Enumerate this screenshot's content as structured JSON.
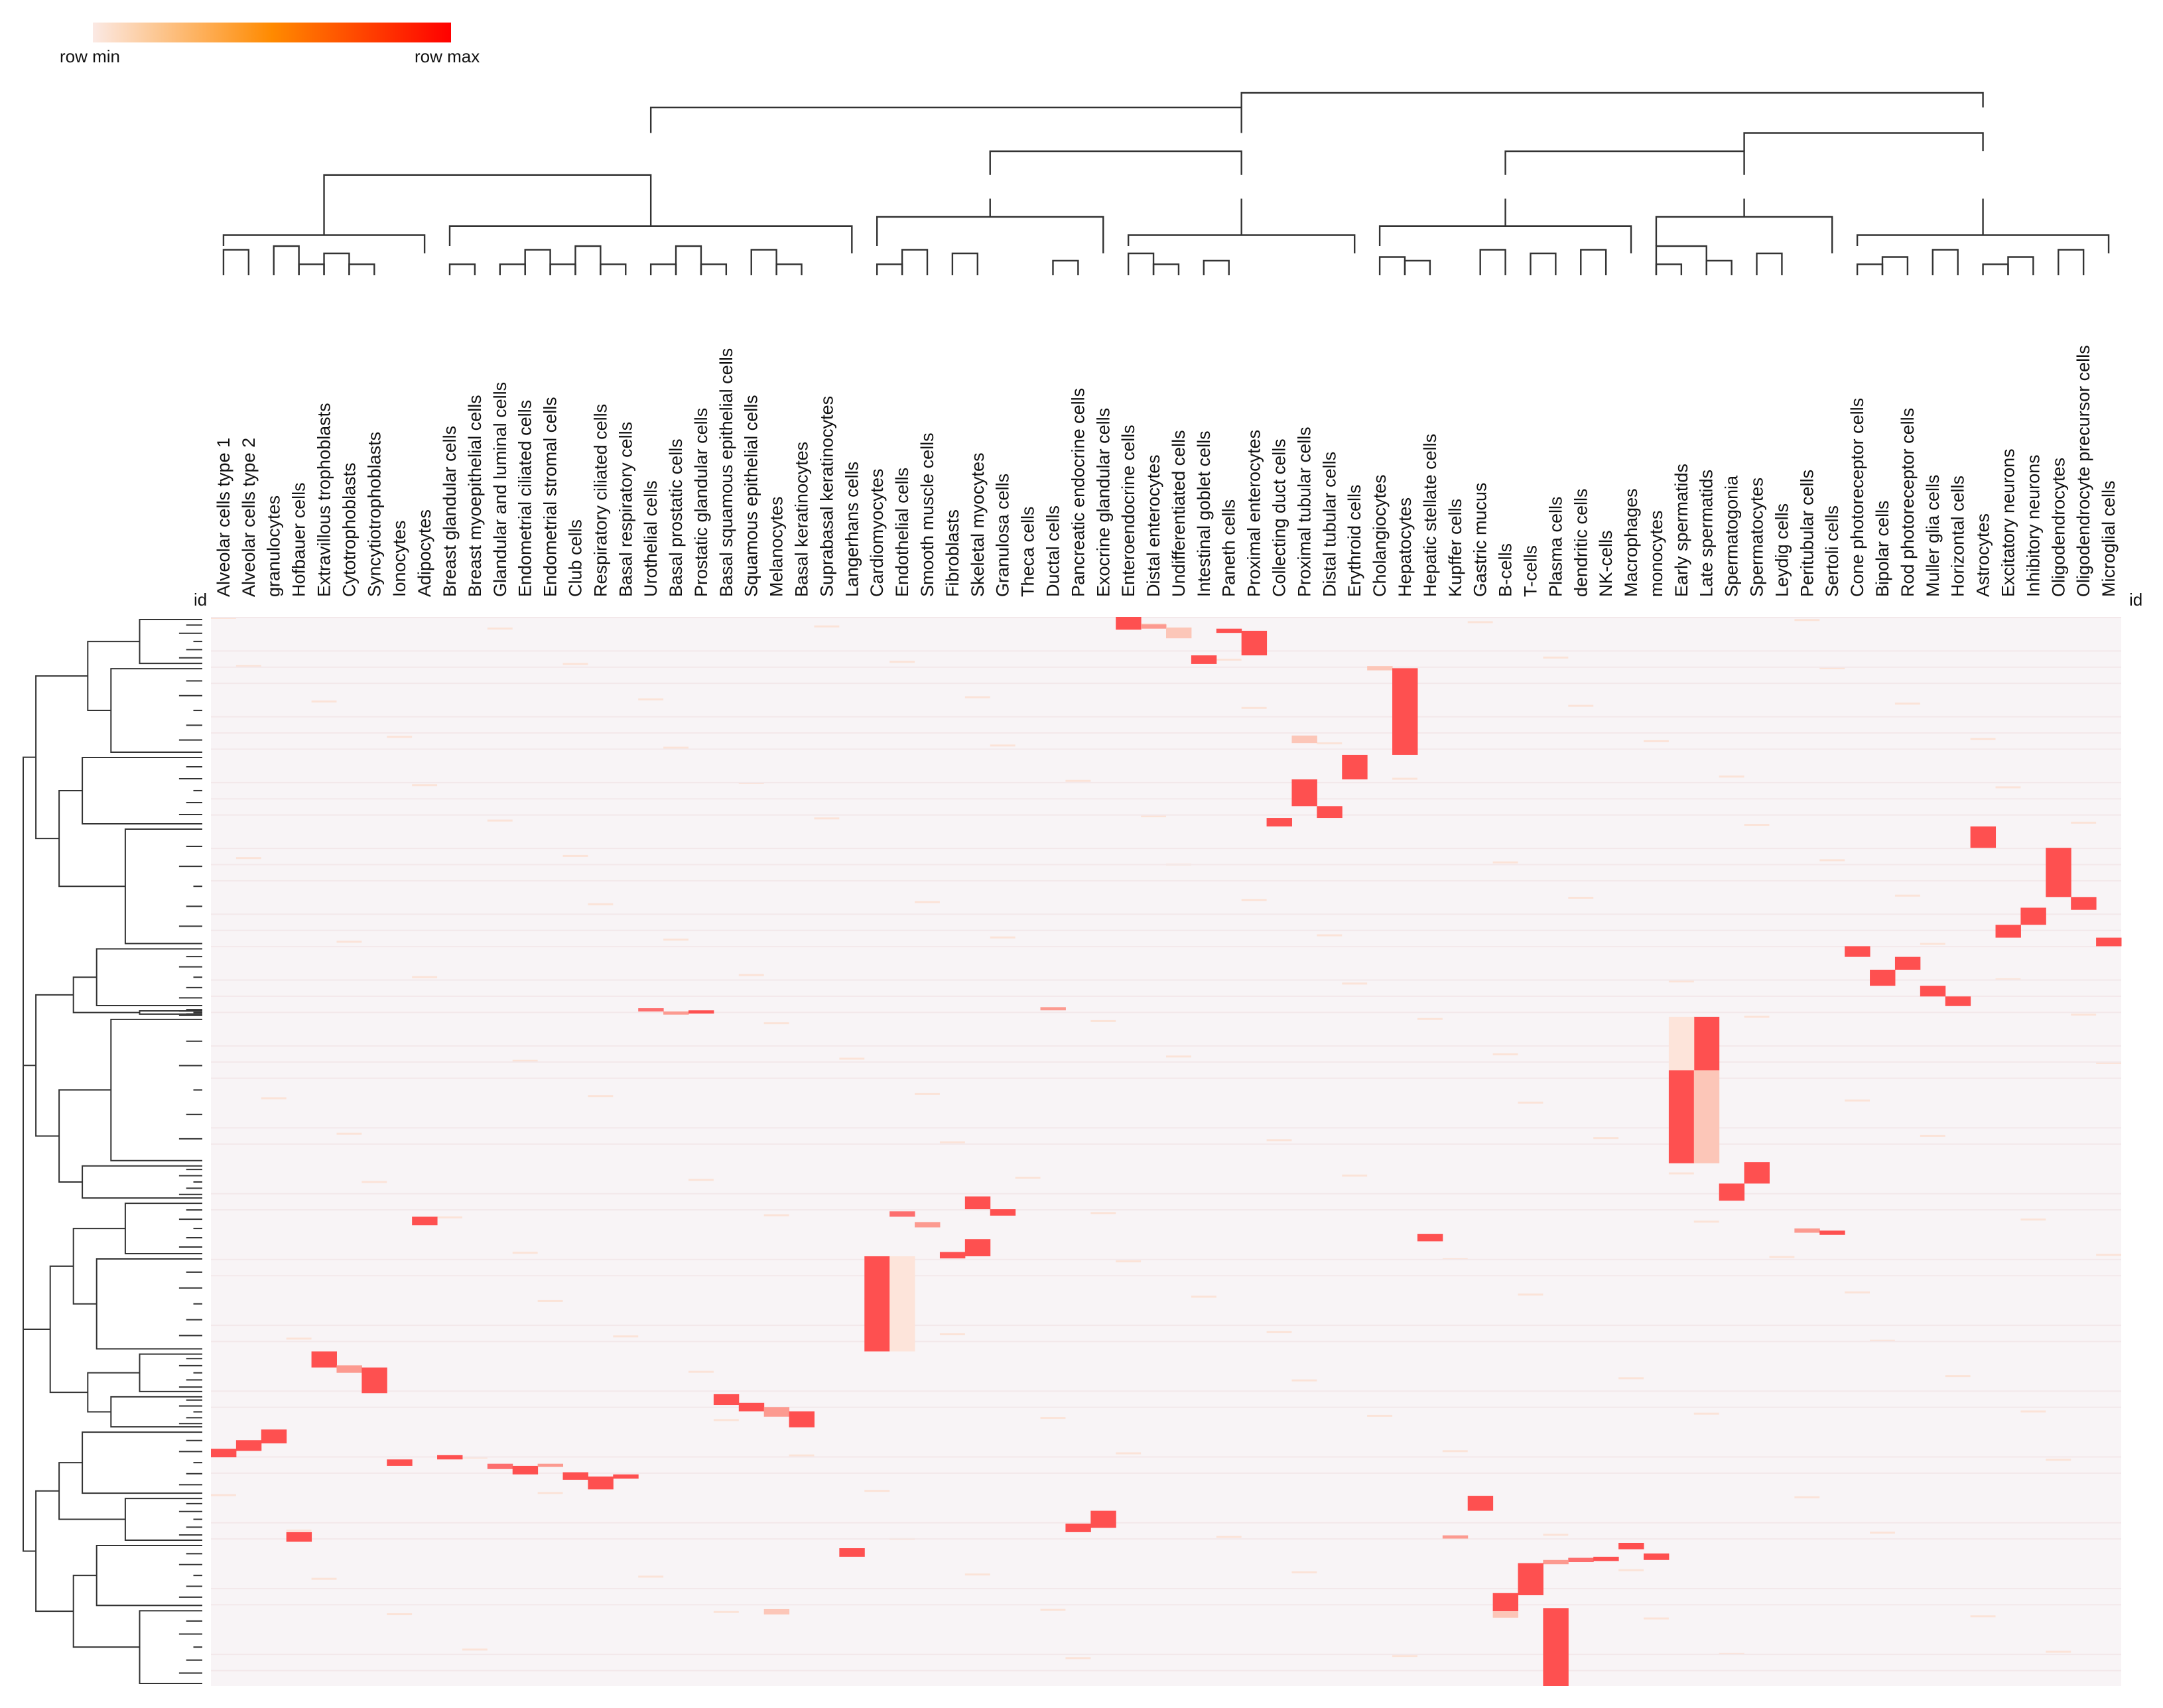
{
  "legend": {
    "min_label": "row min",
    "max_label": "row max",
    "gradient": [
      "#fbe9e4",
      "#ff8a00",
      "#ff0000"
    ]
  },
  "heatmap_bg": "#f8f4f6",
  "chart_data": {
    "type": "heatmap",
    "id_label_left": "id",
    "id_label_right": "id",
    "columns": [
      "Alveolar cells type 1",
      "Alveolar cells type 2",
      "granulocytes",
      "Hofbauer cells",
      "Extravillous trophoblasts",
      "Cytotrophoblasts",
      "Syncytiotrophoblasts",
      "Ionocytes",
      "Adipocytes",
      "Breast glandular cells",
      "Breast myoepithelial cells",
      "Glandular and luminal cells",
      "Endometrial ciliated cells",
      "Endometrial stromal cells",
      "Club cells",
      "Respiratory ciliated cells",
      "Basal respiratory cells",
      "Urothelial cells",
      "Basal prostatic cells",
      "Prostatic glandular cells",
      "Basal squamous epithelial cells",
      "Squamous epithelial cells",
      "Melanocytes",
      "Basal keratinocytes",
      "Suprabasal keratinocytes",
      "Langerhans cells",
      "Cardiomyocytes",
      "Endothelial cells",
      "Smooth muscle cells",
      "Fibroblasts",
      "Skeletal myocytes",
      "Granulosa cells",
      "Theca cells",
      "Ductal cells",
      "Pancreatic endocrine cells",
      "Exocrine glandular cells",
      "Enteroendocrine cells",
      "Distal enterocytes",
      "Undifferentiated cells",
      "Intestinal goblet cells",
      "Paneth cells",
      "Proximal enterocytes",
      "Collecting duct cells",
      "Proximal tubular cells",
      "Distal tubular cells",
      "Erythroid cells",
      "Cholangiocytes",
      "Hepatocytes",
      "Hepatic stellate cells",
      "Kupffer cells",
      "Gastric mucus",
      "B-cells",
      "T-cells",
      "Plasma cells",
      "dendritic cells",
      "NK-cells",
      "Macrophages",
      "monocytes",
      "Early spermatids",
      "Late spermatids",
      "Spermatogonia",
      "Spermatocytes",
      "Leydig cells",
      "Peritubular cells",
      "Sertoli cells",
      "Cone photoreceptor cells",
      "Bipolar cells",
      "Rod photoreceptor cells",
      "Muller glia cells",
      "Horizontal cells",
      "Astrocytes",
      "Excitatory neurons",
      "Inhibitory neurons",
      "Oligodendrocytes",
      "Oligodendrocyte precursor cells",
      "Microglial cells"
    ],
    "value_range": [
      0,
      1
    ],
    "row_range": [
      0,
      1
    ],
    "blocks": [
      {
        "col": 36,
        "r0": 0.0,
        "r1": 0.012,
        "v": 1
      },
      {
        "col": 37,
        "r0": 0.007,
        "r1": 0.011,
        "v": 0.5
      },
      {
        "col": 38,
        "r0": 0.01,
        "r1": 0.02,
        "v": 0.4
      },
      {
        "col": 40,
        "r0": 0.011,
        "r1": 0.015,
        "v": 0.9
      },
      {
        "col": 41,
        "r0": 0.013,
        "r1": 0.036,
        "v": 1
      },
      {
        "col": 39,
        "r0": 0.036,
        "r1": 0.044,
        "v": 1
      },
      {
        "col": 46,
        "r0": 0.046,
        "r1": 0.05,
        "v": 0.4
      },
      {
        "col": 47,
        "r0": 0.048,
        "r1": 0.129,
        "v": 1
      },
      {
        "col": 43,
        "r0": 0.111,
        "r1": 0.118,
        "v": 0.3
      },
      {
        "col": 45,
        "r0": 0.129,
        "r1": 0.152,
        "v": 1
      },
      {
        "col": 43,
        "r0": 0.152,
        "r1": 0.177,
        "v": 1
      },
      {
        "col": 44,
        "r0": 0.177,
        "r1": 0.188,
        "v": 1
      },
      {
        "col": 42,
        "r0": 0.188,
        "r1": 0.196,
        "v": 1
      },
      {
        "col": 70,
        "r0": 0.196,
        "r1": 0.216,
        "v": 1
      },
      {
        "col": 73,
        "r0": 0.216,
        "r1": 0.262,
        "v": 1
      },
      {
        "col": 74,
        "r0": 0.262,
        "r1": 0.274,
        "v": 1
      },
      {
        "col": 72,
        "r0": 0.272,
        "r1": 0.288,
        "v": 1
      },
      {
        "col": 71,
        "r0": 0.288,
        "r1": 0.3,
        "v": 1
      },
      {
        "col": 75,
        "r0": 0.3,
        "r1": 0.308,
        "v": 1
      },
      {
        "col": 65,
        "r0": 0.308,
        "r1": 0.318,
        "v": 1
      },
      {
        "col": 67,
        "r0": 0.318,
        "r1": 0.33,
        "v": 1
      },
      {
        "col": 66,
        "r0": 0.33,
        "r1": 0.345,
        "v": 1
      },
      {
        "col": 68,
        "r0": 0.345,
        "r1": 0.355,
        "v": 1
      },
      {
        "col": 69,
        "r0": 0.355,
        "r1": 0.364,
        "v": 1
      },
      {
        "col": 17,
        "r0": 0.366,
        "r1": 0.369,
        "v": 0.7
      },
      {
        "col": 18,
        "r0": 0.369,
        "r1": 0.372,
        "v": 0.5
      },
      {
        "col": 19,
        "r0": 0.368,
        "r1": 0.371,
        "v": 0.9
      },
      {
        "col": 33,
        "r0": 0.365,
        "r1": 0.368,
        "v": 0.5
      },
      {
        "col": 59,
        "r0": 0.374,
        "r1": 0.424,
        "v": 1
      },
      {
        "col": 58,
        "r0": 0.374,
        "r1": 0.424,
        "v": 0.25
      },
      {
        "col": 58,
        "r0": 0.424,
        "r1": 0.511,
        "v": 1
      },
      {
        "col": 59,
        "r0": 0.424,
        "r1": 0.511,
        "v": 0.3
      },
      {
        "col": 61,
        "r0": 0.51,
        "r1": 0.53,
        "v": 1
      },
      {
        "col": 60,
        "r0": 0.53,
        "r1": 0.546,
        "v": 1
      },
      {
        "col": 30,
        "r0": 0.542,
        "r1": 0.554,
        "v": 1
      },
      {
        "col": 31,
        "r0": 0.554,
        "r1": 0.56,
        "v": 1
      },
      {
        "col": 27,
        "r0": 0.556,
        "r1": 0.561,
        "v": 0.7
      },
      {
        "col": 8,
        "r0": 0.561,
        "r1": 0.569,
        "v": 1
      },
      {
        "col": 28,
        "r0": 0.566,
        "r1": 0.571,
        "v": 0.5
      },
      {
        "col": 48,
        "r0": 0.577,
        "r1": 0.584,
        "v": 1
      },
      {
        "col": 63,
        "r0": 0.572,
        "r1": 0.576,
        "v": 0.6
      },
      {
        "col": 64,
        "r0": 0.574,
        "r1": 0.578,
        "v": 0.9
      },
      {
        "col": 30,
        "r0": 0.582,
        "r1": 0.598,
        "v": 1
      },
      {
        "col": 29,
        "r0": 0.594,
        "r1": 0.6,
        "v": 1
      },
      {
        "col": 26,
        "r0": 0.598,
        "r1": 0.687,
        "v": 1
      },
      {
        "col": 27,
        "r0": 0.598,
        "r1": 0.687,
        "v": 0.08
      },
      {
        "col": 4,
        "r0": 0.687,
        "r1": 0.702,
        "v": 1
      },
      {
        "col": 5,
        "r0": 0.7,
        "r1": 0.707,
        "v": 0.5
      },
      {
        "col": 6,
        "r0": 0.702,
        "r1": 0.726,
        "v": 1
      },
      {
        "col": 20,
        "r0": 0.727,
        "r1": 0.737,
        "v": 1
      },
      {
        "col": 21,
        "r0": 0.735,
        "r1": 0.743,
        "v": 1
      },
      {
        "col": 22,
        "r0": 0.739,
        "r1": 0.748,
        "v": 0.5
      },
      {
        "col": 23,
        "r0": 0.743,
        "r1": 0.758,
        "v": 1
      },
      {
        "col": 2,
        "r0": 0.76,
        "r1": 0.773,
        "v": 1
      },
      {
        "col": 1,
        "r0": 0.77,
        "r1": 0.78,
        "v": 1
      },
      {
        "col": 0,
        "r0": 0.778,
        "r1": 0.786,
        "v": 1
      },
      {
        "col": 7,
        "r0": 0.788,
        "r1": 0.794,
        "v": 1
      },
      {
        "col": 9,
        "r0": 0.784,
        "r1": 0.788,
        "v": 1
      },
      {
        "col": 11,
        "r0": 0.792,
        "r1": 0.797,
        "v": 0.8
      },
      {
        "col": 12,
        "r0": 0.794,
        "r1": 0.802,
        "v": 1
      },
      {
        "col": 13,
        "r0": 0.792,
        "r1": 0.795,
        "v": 0.6
      },
      {
        "col": 14,
        "r0": 0.8,
        "r1": 0.807,
        "v": 1
      },
      {
        "col": 15,
        "r0": 0.804,
        "r1": 0.816,
        "v": 1
      },
      {
        "col": 16,
        "r0": 0.802,
        "r1": 0.806,
        "v": 0.9
      },
      {
        "col": 50,
        "r0": 0.822,
        "r1": 0.836,
        "v": 1
      },
      {
        "col": 35,
        "r0": 0.836,
        "r1": 0.852,
        "v": 1
      },
      {
        "col": 34,
        "r0": 0.848,
        "r1": 0.856,
        "v": 1
      },
      {
        "col": 3,
        "r0": 0.856,
        "r1": 0.865,
        "v": 1
      },
      {
        "col": 49,
        "r0": 0.859,
        "r1": 0.862,
        "v": 0.6
      },
      {
        "col": 25,
        "r0": 0.871,
        "r1": 0.879,
        "v": 1
      },
      {
        "col": 56,
        "r0": 0.866,
        "r1": 0.872,
        "v": 1
      },
      {
        "col": 57,
        "r0": 0.876,
        "r1": 0.882,
        "v": 1
      },
      {
        "col": 54,
        "r0": 0.88,
        "r1": 0.884,
        "v": 0.8
      },
      {
        "col": 55,
        "r0": 0.879,
        "r1": 0.883,
        "v": 0.9
      },
      {
        "col": 53,
        "r0": 0.882,
        "r1": 0.886,
        "v": 0.6
      },
      {
        "col": 52,
        "r0": 0.885,
        "r1": 0.915,
        "v": 1
      },
      {
        "col": 51,
        "r0": 0.913,
        "r1": 0.93,
        "v": 1
      },
      {
        "col": 53,
        "r0": 0.927,
        "r1": 1.0,
        "v": 1
      },
      {
        "col": 22,
        "r0": 0.928,
        "r1": 0.933,
        "v": 0.3
      },
      {
        "col": 51,
        "r0": 0.93,
        "r1": 0.936,
        "v": 0.4
      }
    ],
    "column_dendrogram": [
      {
        "a": 0,
        "b": 1,
        "h": 0.14
      },
      {
        "a": 3,
        "b": 4,
        "h": 0.06
      },
      {
        "a": 2,
        "b": 3,
        "h": 0.16
      },
      {
        "a": 5,
        "b": 6,
        "h": 0.06
      },
      {
        "a": 4,
        "b": 5,
        "h": 0.12
      },
      {
        "a": 9,
        "b": 10,
        "h": 0.06
      },
      {
        "a": 11,
        "b": 12,
        "h": 0.06
      },
      {
        "a": 13,
        "b": 14,
        "h": 0.06
      },
      {
        "a": 15,
        "b": 16,
        "h": 0.06
      },
      {
        "a": 17,
        "b": 18,
        "h": 0.06
      },
      {
        "a": 12,
        "b": 13,
        "h": 0.14
      },
      {
        "a": 14,
        "b": 15,
        "h": 0.16
      },
      {
        "a": 19,
        "b": 20,
        "h": 0.06
      },
      {
        "a": 18,
        "b": 19,
        "h": 0.16
      },
      {
        "a": 22,
        "b": 23,
        "h": 0.06
      },
      {
        "a": 21,
        "b": 22,
        "h": 0.14
      },
      {
        "a": 26,
        "b": 27,
        "h": 0.06
      },
      {
        "a": 27,
        "b": 28,
        "h": 0.14
      },
      {
        "a": 29,
        "b": 30,
        "h": 0.12
      },
      {
        "a": 33,
        "b": 34,
        "h": 0.08
      },
      {
        "a": 37,
        "b": 38,
        "h": 0.06
      },
      {
        "a": 39,
        "b": 40,
        "h": 0.08
      },
      {
        "a": 36,
        "b": 37,
        "h": 0.12
      },
      {
        "a": 46,
        "b": 47,
        "h": 0.1
      },
      {
        "a": 47,
        "b": 48,
        "h": 0.08
      },
      {
        "a": 50,
        "b": 51,
        "h": 0.14
      },
      {
        "a": 52,
        "b": 53,
        "h": 0.12
      },
      {
        "a": 54,
        "b": 55,
        "h": 0.14
      },
      {
        "a": 57,
        "b": 58,
        "h": 0.06
      },
      {
        "a": 59,
        "b": 60,
        "h": 0.08
      },
      {
        "a": 61,
        "b": 62,
        "h": 0.12
      },
      {
        "a": 57,
        "b": 59,
        "h": 0.16
      },
      {
        "a": 65,
        "b": 66,
        "h": 0.06
      },
      {
        "a": 66,
        "b": 67,
        "h": 0.1
      },
      {
        "a": 68,
        "b": 69,
        "h": 0.14
      },
      {
        "a": 70,
        "b": 71,
        "h": 0.06
      },
      {
        "a": 71,
        "b": 72,
        "h": 0.1
      },
      {
        "a": 73,
        "b": 74,
        "h": 0.14
      }
    ],
    "column_tree": {
      "levels": [
        0.42,
        0.55,
        0.68,
        0.78,
        0.92,
        1.0
      ],
      "groups": [
        [
          0,
          8
        ],
        [
          9,
          25
        ],
        [
          26,
          35
        ],
        [
          36,
          45
        ],
        [
          46,
          56
        ],
        [
          57,
          64
        ],
        [
          65,
          75
        ]
      ]
    },
    "row_dendrogram_clusters": [
      0.0,
      0.046,
      0.129,
      0.196,
      0.308,
      0.366,
      0.374,
      0.511,
      0.546,
      0.598,
      0.687,
      0.727,
      0.76,
      0.822,
      0.866,
      0.927,
      1.0
    ]
  }
}
